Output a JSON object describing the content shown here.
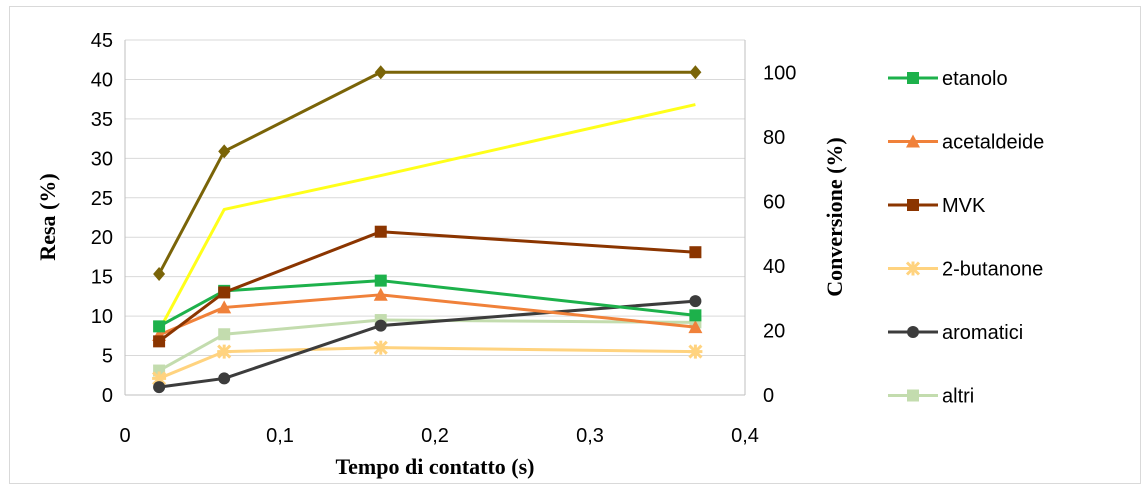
{
  "chart_data": {
    "type": "line",
    "xlabel": "Tempo di contatto (s)",
    "ylabel": "Resa (%)",
    "y2label": "Conversione (%)",
    "xlim": [
      0,
      0.4
    ],
    "ylim": [
      0,
      45
    ],
    "y2lim": [
      0,
      110
    ],
    "x_ticks": [
      "0",
      "0,1",
      "0,2",
      "0,3",
      "0,4"
    ],
    "y_ticks": [
      "0",
      "5",
      "10",
      "15",
      "20",
      "25",
      "30",
      "35",
      "40",
      "45"
    ],
    "y2_ticks": [
      "0",
      "20",
      "40",
      "60",
      "80",
      "100"
    ],
    "grid": "horizontal",
    "legend_position": "right",
    "series": [
      {
        "name": "etanolo",
        "axis": "left",
        "color": "#1db14b",
        "marker": "square",
        "x": [
          0.022,
          0.064,
          0.165,
          0.368
        ],
        "y": [
          8.7,
          13.2,
          14.5,
          10.1
        ]
      },
      {
        "name": "acetaldeide",
        "axis": "left",
        "color": "#f0813a",
        "marker": "triangle",
        "x": [
          0.022,
          0.064,
          0.165,
          0.368
        ],
        "y": [
          7.6,
          11.1,
          12.7,
          8.6
        ]
      },
      {
        "name": "MVK",
        "axis": "left",
        "color": "#8b3500",
        "marker": "square",
        "x": [
          0.022,
          0.064,
          0.165,
          0.368
        ],
        "y": [
          6.8,
          13.0,
          20.7,
          18.1
        ]
      },
      {
        "name": "2-butanone",
        "axis": "left",
        "color": "#ffd37f",
        "marker": "star",
        "x": [
          0.022,
          0.064,
          0.165,
          0.368
        ],
        "y": [
          2.1,
          5.5,
          6.0,
          5.5
        ]
      },
      {
        "name": "aromatici",
        "axis": "left",
        "color": "#3c3c3c",
        "marker": "circle",
        "x": [
          0.022,
          0.064,
          0.165,
          0.368
        ],
        "y": [
          1.0,
          2.1,
          8.8,
          11.9
        ]
      },
      {
        "name": "altri",
        "axis": "left",
        "color": "#c3dcae",
        "marker": "square",
        "x": [
          0.022,
          0.064,
          0.165,
          0.368
        ],
        "y": [
          3.1,
          7.7,
          9.5,
          9.2
        ]
      },
      {
        "name": "",
        "axis": "right",
        "color": "#7a6408",
        "marker": "diamond",
        "x": [
          0.022,
          0.064,
          0.165,
          0.368
        ],
        "y": [
          37.5,
          75.5,
          100,
          100
        ]
      },
      {
        "name": "",
        "axis": "right",
        "color": "#ffff1a",
        "marker": "none",
        "x": [
          0.022,
          0.064,
          0.165,
          0.368
        ],
        "y": [
          20,
          57.5,
          68,
          90
        ]
      }
    ]
  }
}
